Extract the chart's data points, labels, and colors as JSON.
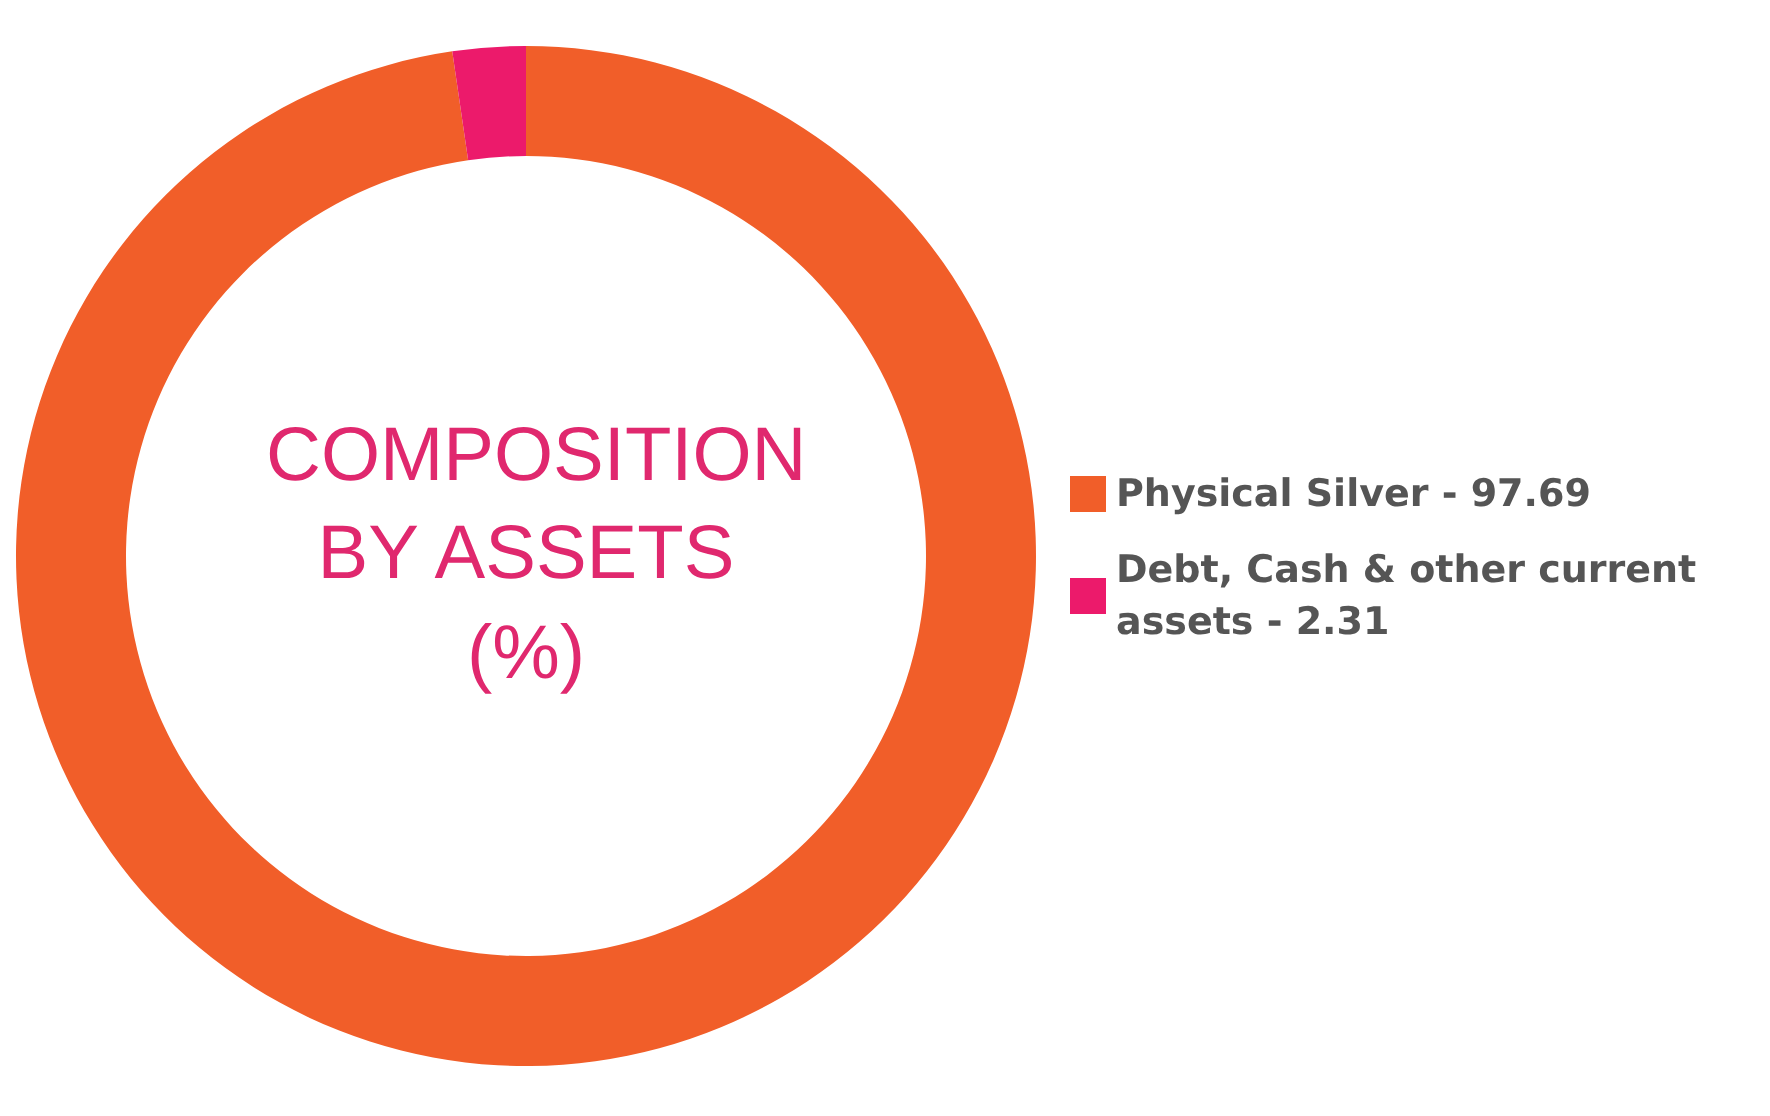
{
  "chart_data": {
    "type": "donut",
    "title": "COMPOSITION BY ASSETS (%)",
    "categories": [
      "Physical Silver - 97.69",
      "Debt, Cash & other current assets - 2.31"
    ],
    "values": [
      97.69,
      2.31
    ],
    "colors": [
      "#f15e29",
      "#ec1a6b"
    ],
    "legend": "right"
  }
}
